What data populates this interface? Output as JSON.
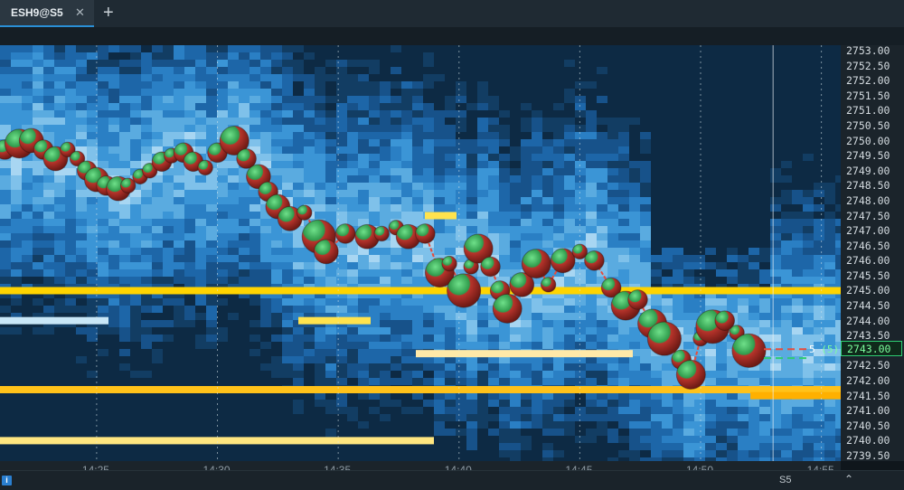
{
  "tab": {
    "label": "ESH9@S5"
  },
  "icons": {
    "close": "close-icon",
    "add": "plus-icon",
    "info": "info-icon",
    "up": "chevron-up-icon"
  },
  "colors": {
    "accent": "#2a8fd6",
    "buy": "#2ecc71",
    "sell": "#e74c3c",
    "liquidity_high": "#ffd400",
    "liquidity_low": "#1f5f99"
  },
  "chart_data": {
    "type": "heatmap",
    "instrument": "ESH9",
    "y_axis": {
      "ticks": [
        "2753.00",
        "2752.50",
        "2752.00",
        "2751.50",
        "2751.00",
        "2750.50",
        "2750.00",
        "2749.50",
        "2749.00",
        "2748.50",
        "2748.00",
        "2747.50",
        "2747.00",
        "2746.50",
        "2746.00",
        "2745.50",
        "2745.00",
        "2744.50",
        "2744.00",
        "2743.50",
        "2743.00",
        "2742.50",
        "2742.00",
        "2741.50",
        "2741.00",
        "2740.50",
        "2740.00",
        "2739.50"
      ],
      "range": [
        2739.5,
        2753.0
      ]
    },
    "x_axis": {
      "ticks": [
        "14:25",
        "14:30",
        "14:35",
        "14:40",
        "14:45",
        "14:50",
        "14:55"
      ],
      "minutes": [
        25,
        30,
        35,
        40,
        45,
        50,
        55
      ],
      "range_minutes": [
        21.0,
        55.8
      ]
    },
    "current_price": "2743.00",
    "position_readout": {
      "value": "5",
      "paren": "(5)"
    },
    "interval": "S5",
    "trades": [
      {
        "t": 21.2,
        "p": 2749.7,
        "v": 3
      },
      {
        "t": 21.8,
        "p": 2749.9,
        "v": 5
      },
      {
        "t": 22.3,
        "p": 2750.0,
        "v": 4
      },
      {
        "t": 22.8,
        "p": 2749.7,
        "v": 3
      },
      {
        "t": 23.3,
        "p": 2749.4,
        "v": 4
      },
      {
        "t": 23.8,
        "p": 2749.7,
        "v": 2
      },
      {
        "t": 24.2,
        "p": 2749.4,
        "v": 2
      },
      {
        "t": 24.6,
        "p": 2749.0,
        "v": 3
      },
      {
        "t": 25.0,
        "p": 2748.7,
        "v": 4
      },
      {
        "t": 25.4,
        "p": 2748.5,
        "v": 3
      },
      {
        "t": 25.9,
        "p": 2748.4,
        "v": 4
      },
      {
        "t": 26.3,
        "p": 2748.5,
        "v": 2
      },
      {
        "t": 26.8,
        "p": 2748.8,
        "v": 2
      },
      {
        "t": 27.2,
        "p": 2749.0,
        "v": 2
      },
      {
        "t": 27.7,
        "p": 2749.3,
        "v": 3
      },
      {
        "t": 28.1,
        "p": 2749.5,
        "v": 2
      },
      {
        "t": 28.6,
        "p": 2749.6,
        "v": 3
      },
      {
        "t": 29.0,
        "p": 2749.3,
        "v": 3
      },
      {
        "t": 29.5,
        "p": 2749.1,
        "v": 2
      },
      {
        "t": 30.0,
        "p": 2749.6,
        "v": 3
      },
      {
        "t": 30.7,
        "p": 2750.0,
        "v": 5
      },
      {
        "t": 31.2,
        "p": 2749.4,
        "v": 3
      },
      {
        "t": 31.7,
        "p": 2748.8,
        "v": 4
      },
      {
        "t": 32.1,
        "p": 2748.3,
        "v": 3
      },
      {
        "t": 32.5,
        "p": 2747.8,
        "v": 4
      },
      {
        "t": 33.0,
        "p": 2747.4,
        "v": 4
      },
      {
        "t": 33.6,
        "p": 2747.6,
        "v": 2
      },
      {
        "t": 34.2,
        "p": 2746.8,
        "v": 6
      },
      {
        "t": 34.5,
        "p": 2746.3,
        "v": 4
      },
      {
        "t": 35.3,
        "p": 2746.9,
        "v": 3
      },
      {
        "t": 36.2,
        "p": 2746.8,
        "v": 4
      },
      {
        "t": 36.8,
        "p": 2746.9,
        "v": 2
      },
      {
        "t": 37.4,
        "p": 2747.1,
        "v": 2
      },
      {
        "t": 37.9,
        "p": 2746.8,
        "v": 4
      },
      {
        "t": 38.6,
        "p": 2746.9,
        "v": 3
      },
      {
        "t": 39.2,
        "p": 2745.6,
        "v": 5
      },
      {
        "t": 39.6,
        "p": 2745.9,
        "v": 2
      },
      {
        "t": 40.2,
        "p": 2745.0,
        "v": 6
      },
      {
        "t": 40.5,
        "p": 2745.8,
        "v": 2
      },
      {
        "t": 40.8,
        "p": 2746.4,
        "v": 5
      },
      {
        "t": 41.3,
        "p": 2745.8,
        "v": 3
      },
      {
        "t": 41.7,
        "p": 2745.0,
        "v": 3
      },
      {
        "t": 42.0,
        "p": 2744.4,
        "v": 5
      },
      {
        "t": 42.6,
        "p": 2745.2,
        "v": 4
      },
      {
        "t": 43.2,
        "p": 2745.9,
        "v": 5
      },
      {
        "t": 43.7,
        "p": 2745.2,
        "v": 2
      },
      {
        "t": 44.3,
        "p": 2746.0,
        "v": 4
      },
      {
        "t": 45.0,
        "p": 2746.3,
        "v": 2
      },
      {
        "t": 45.6,
        "p": 2746.0,
        "v": 3
      },
      {
        "t": 46.3,
        "p": 2745.1,
        "v": 3
      },
      {
        "t": 46.9,
        "p": 2744.5,
        "v": 5
      },
      {
        "t": 47.4,
        "p": 2744.7,
        "v": 3
      },
      {
        "t": 48.0,
        "p": 2743.9,
        "v": 5
      },
      {
        "t": 48.5,
        "p": 2743.4,
        "v": 6
      },
      {
        "t": 49.2,
        "p": 2742.7,
        "v": 3
      },
      {
        "t": 49.6,
        "p": 2742.2,
        "v": 5
      },
      {
        "t": 50.0,
        "p": 2743.4,
        "v": 2
      },
      {
        "t": 50.5,
        "p": 2743.8,
        "v": 6
      },
      {
        "t": 51.0,
        "p": 2744.0,
        "v": 3
      },
      {
        "t": 51.5,
        "p": 2743.6,
        "v": 2
      },
      {
        "t": 52.0,
        "p": 2743.0,
        "v": 6
      }
    ]
  }
}
